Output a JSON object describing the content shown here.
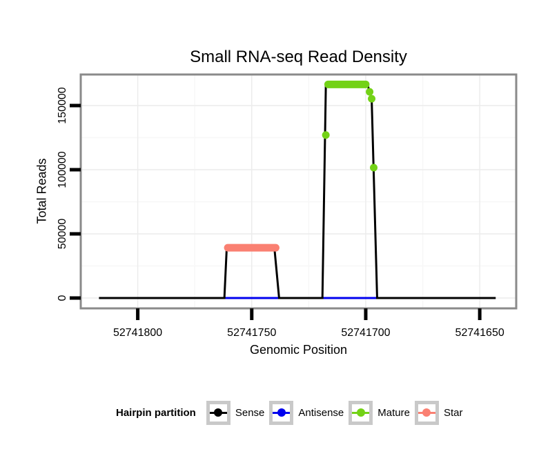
{
  "chart_data": {
    "type": "line",
    "title": "Small RNA-seq Read Density",
    "xlabel": "Genomic Position",
    "ylabel": "Total Reads",
    "x_axis_reversed": true,
    "xlim": [
      52741825,
      52741634
    ],
    "ylim": [
      -8060,
      174200
    ],
    "grid": true,
    "legend_position": "bottom",
    "x_ticks": [
      {
        "value": 52741800,
        "label": "52741800"
      },
      {
        "value": 52741750,
        "label": "52741750"
      },
      {
        "value": 52741700,
        "label": "52741700"
      },
      {
        "value": 52741650,
        "label": "52741650"
      }
    ],
    "y_ticks": [
      {
        "value": 0,
        "label": "0"
      },
      {
        "value": 50000,
        "label": "50000"
      },
      {
        "value": 100000,
        "label": "100000"
      },
      {
        "value": 150000,
        "label": "150000"
      }
    ],
    "x_minor_gridlines": [
      52741775,
      52741725,
      52741675
    ],
    "y_minor_gridlines": [
      25000,
      75000,
      125000
    ],
    "series": [
      {
        "name": "Antisense",
        "color": "#0000ee",
        "style": "line",
        "segments": [
          [
            [
              52741762,
              0
            ],
            [
              52741738,
              0
            ]
          ],
          [
            [
              52741719,
              0
            ],
            [
              52741695,
              0
            ]
          ]
        ]
      },
      {
        "name": "Sense",
        "color": "#000000",
        "style": "line",
        "points": [
          [
            52741817,
            0
          ],
          [
            52741762,
            0
          ],
          [
            52741761,
            38000
          ],
          [
            52741740,
            38000
          ],
          [
            52741738,
            0
          ],
          [
            52741719,
            0
          ],
          [
            52741717.5,
            165000
          ],
          [
            52741699,
            165000
          ],
          [
            52741698.3,
            160700
          ],
          [
            52741697.4,
            155300
          ],
          [
            52741695,
            0
          ],
          [
            52741643,
            0
          ]
        ]
      },
      {
        "name": "Mature",
        "color": "#73d216",
        "style": "points",
        "band": {
          "x_from": 52741716.5,
          "x_to": 52741700,
          "y": 166500
        },
        "points": [
          [
            52741717.5,
            127000
          ],
          [
            52741698.3,
            160700
          ],
          [
            52741697.4,
            155300
          ],
          [
            52741696.5,
            101600
          ]
        ]
      },
      {
        "name": "Star",
        "color": "#fa8072",
        "style": "points",
        "band": {
          "x_from": 52741760.5,
          "x_to": 52741739.5,
          "y": 39200
        },
        "points": []
      }
    ]
  },
  "legend": {
    "title": "Hairpin partition",
    "entries": [
      {
        "label": "Sense",
        "color": "#000000"
      },
      {
        "label": "Antisense",
        "color": "#0000ee"
      },
      {
        "label": "Mature",
        "color": "#73d216"
      },
      {
        "label": "Star",
        "color": "#fa8072"
      }
    ]
  }
}
